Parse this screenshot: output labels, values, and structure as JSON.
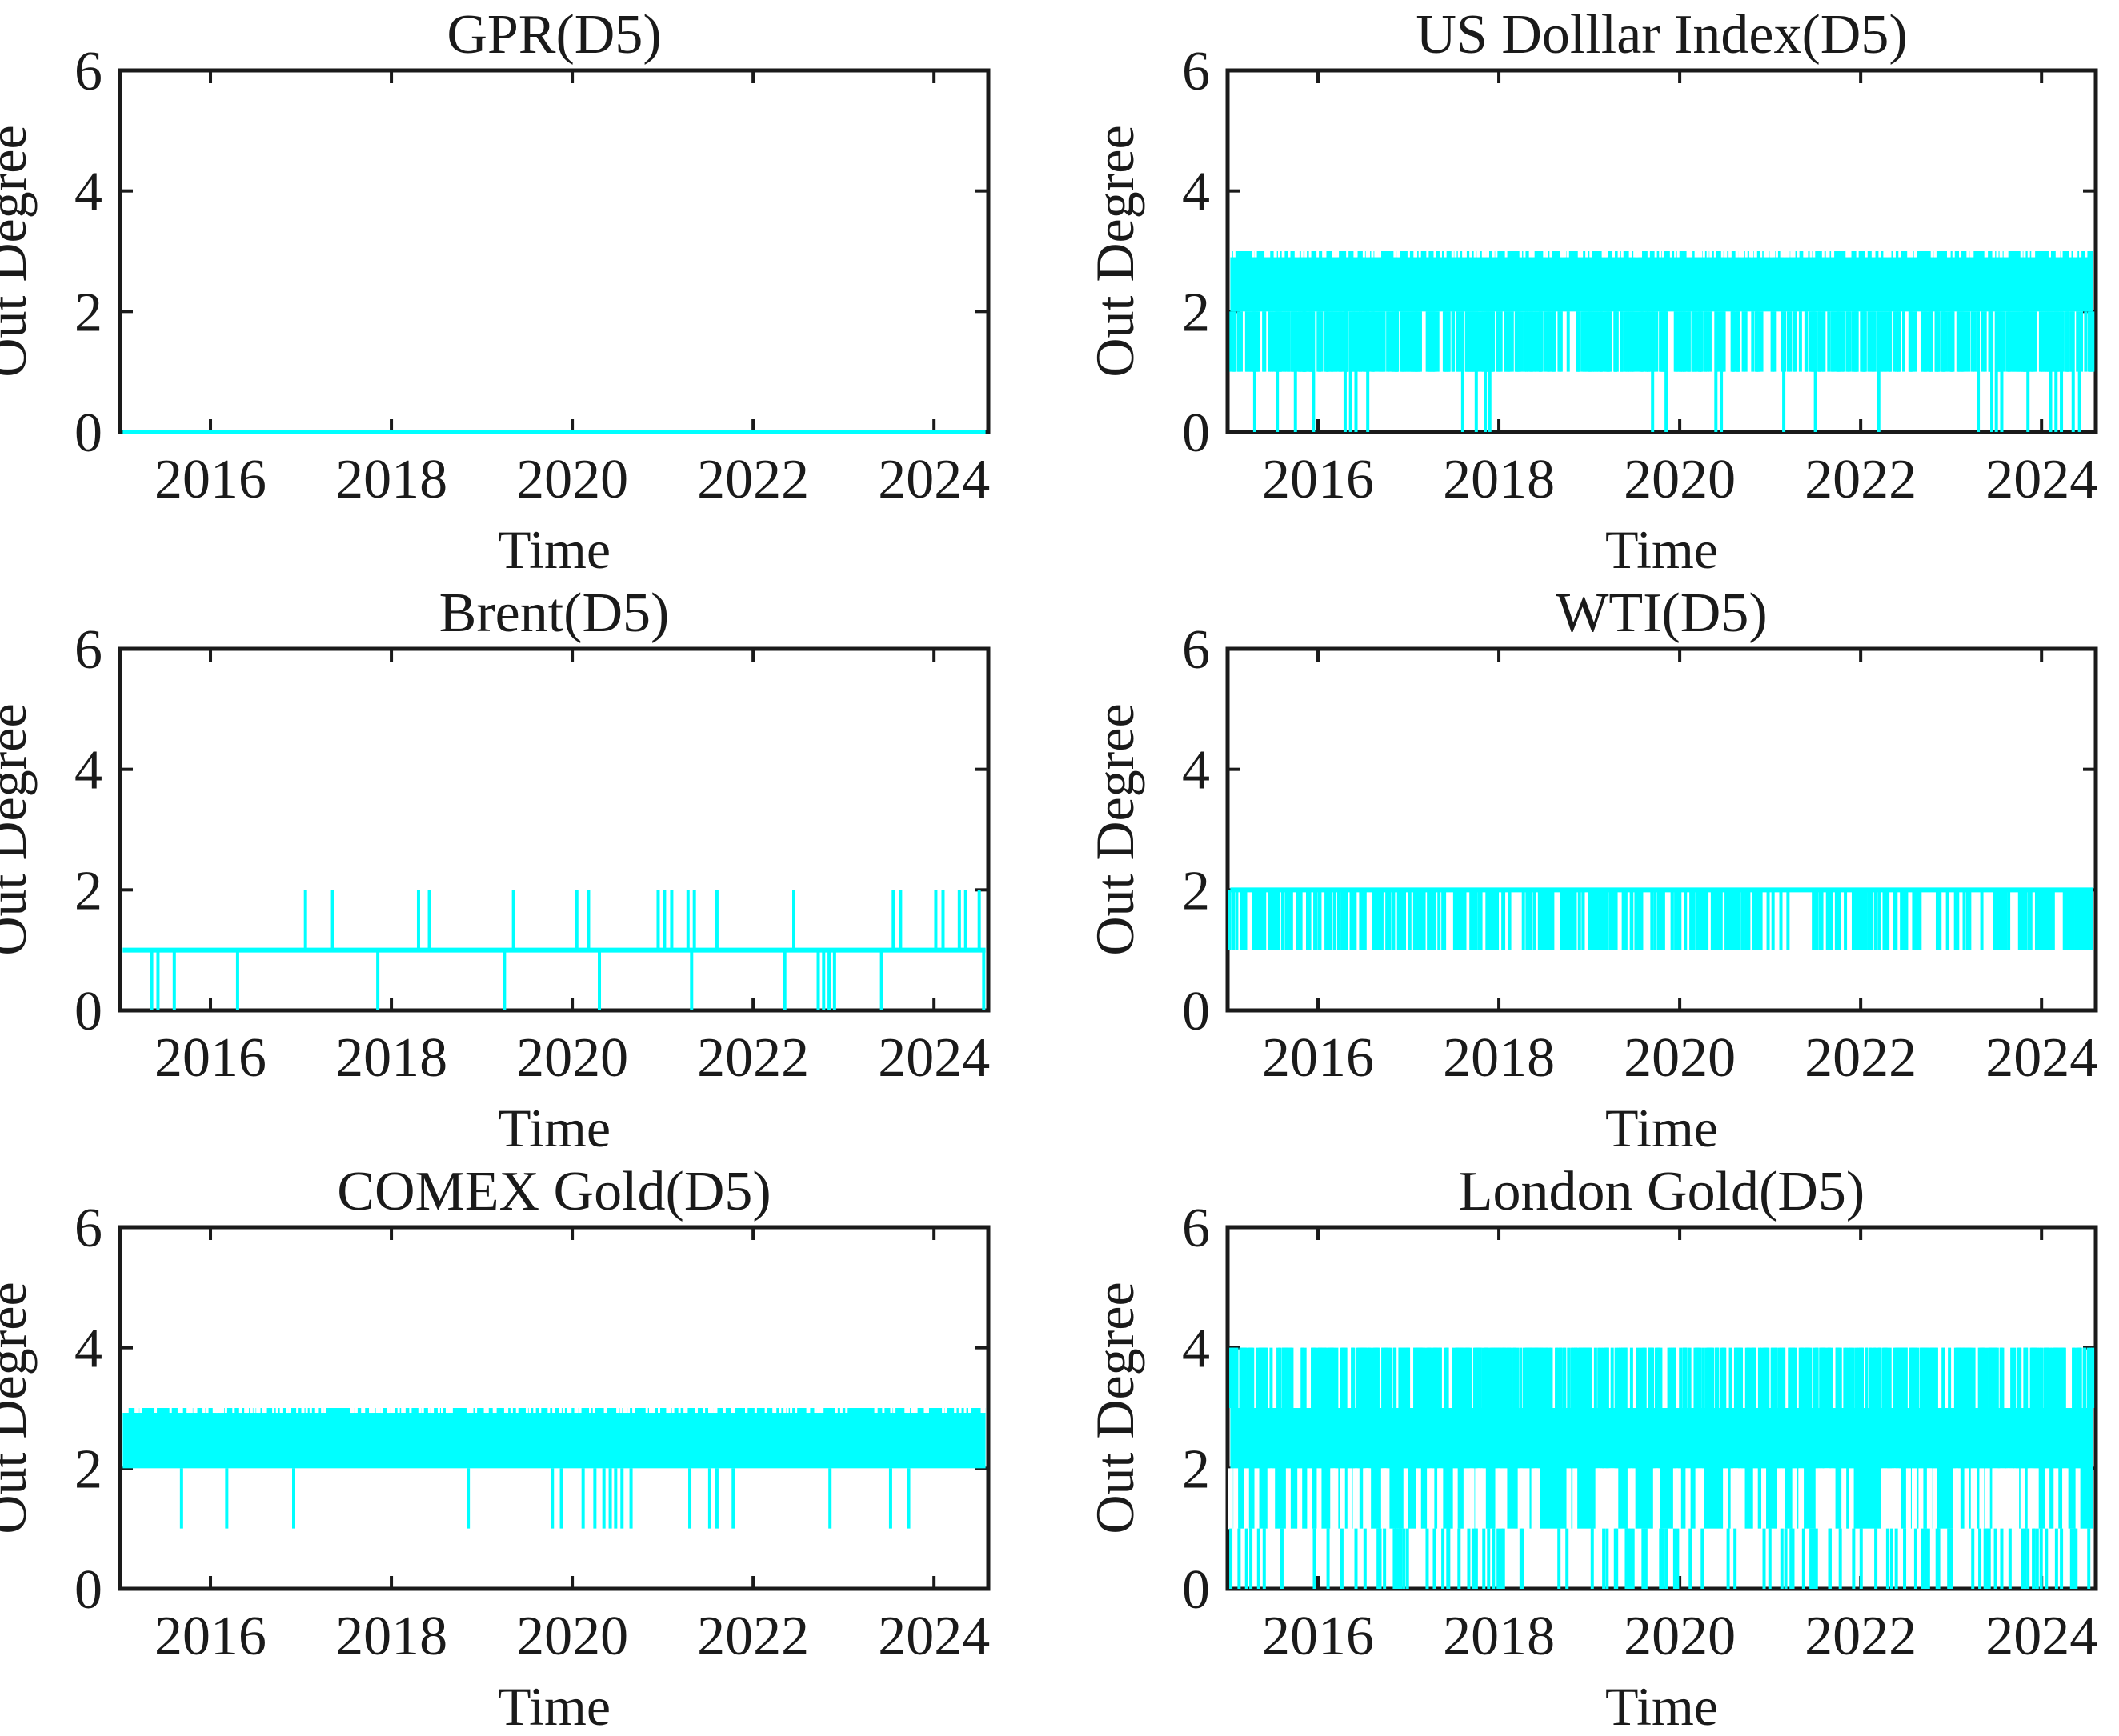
{
  "figure": {
    "background": "#ffffff",
    "grid_rows": 3,
    "grid_cols": 2,
    "note": "Six MATLAB-style subplots of wavelet-scale D5 out-degree time series; dense high-frequency integer oscillations are encoded as bands, explicit spike lists, and per-year line densities."
  },
  "colors": {
    "line": "#00ffff",
    "axis": "#1a1a1a",
    "text": "#1a1a1a",
    "background": "#ffffff"
  },
  "chart_data": [
    {
      "type": "line",
      "title": "GPR(D5)",
      "xlabel": "Time",
      "ylabel": "Out Degree",
      "xlim": [
        2015,
        2024.6
      ],
      "ylim": [
        0,
        6
      ],
      "xticks": [
        2016,
        2018,
        2020,
        2022,
        2024
      ],
      "yticks": [
        0,
        2,
        4,
        6
      ],
      "grid": false,
      "legend": null,
      "series_description": "Out degree constant at 0 over the whole sample (2015 - mid 2024).",
      "features": [
        {
          "kind": "hline",
          "y": 0,
          "w": 6
        }
      ]
    },
    {
      "type": "line",
      "title": "US Dolllar Index(D5)",
      "xlabel": "Time",
      "ylabel": "Out Degree",
      "xlim": [
        2015,
        2024.6
      ],
      "ylim": [
        0,
        6
      ],
      "xticks": [
        2016,
        2018,
        2020,
        2022,
        2024
      ],
      "yticks": [
        0,
        2,
        4,
        6
      ],
      "grid": false,
      "legend": null,
      "series_description": "Out degree oscillates rapidly between 2 and 3 (solid band), with frequent brief drops to 1 and occasional drops to 0.",
      "features": [
        {
          "kind": "band",
          "y1": 2,
          "y2": 3
        },
        {
          "kind": "texture",
          "y1": 2.9,
          "y2": 3.04,
          "density": 26,
          "seed": 101,
          "w": 3,
          "color": "#ffffff"
        },
        {
          "kind": "texture",
          "y1": 1,
          "y2": 2,
          "density": 55,
          "seed": 102,
          "w": 4
        },
        {
          "kind": "vlines",
          "y1": 0,
          "y2": 2,
          "w": 4,
          "x": [
            2015.3,
            2015.55,
            2015.75,
            2015.95,
            2016.3,
            2016.36,
            2016.42,
            2016.55,
            2017.6,
            2017.75,
            2017.85,
            2017.9,
            2019.7,
            2019.85,
            2020.4,
            2020.46,
            2021.15,
            2021.5,
            2022.2,
            2023.3,
            2023.45,
            2023.5,
            2023.56,
            2023.85,
            2024.1,
            2024.16,
            2024.22,
            2024.35,
            2024.42
          ]
        }
      ]
    },
    {
      "type": "line",
      "title": "Brent(D5)",
      "xlabel": "Time",
      "ylabel": "Out Degree",
      "xlim": [
        2015,
        2024.6
      ],
      "ylim": [
        0,
        6
      ],
      "xticks": [
        2016,
        2018,
        2020,
        2022,
        2024
      ],
      "yticks": [
        0,
        2,
        4,
        6
      ],
      "grid": false,
      "legend": null,
      "series_description": "Out degree mostly 1, with occasional spikes to 2 and occasional drops to 0.",
      "features": [
        {
          "kind": "hline",
          "y": 1,
          "w": 6
        },
        {
          "kind": "vlines",
          "y1": 1,
          "y2": 2,
          "w": 4,
          "x": [
            2017.05,
            2017.35,
            2018.3,
            2018.42,
            2019.35,
            2020.05,
            2020.18,
            2020.95,
            2021.02,
            2021.1,
            2021.28,
            2021.35,
            2021.6,
            2022.45,
            2023.55,
            2023.63,
            2024.02,
            2024.1,
            2024.28,
            2024.35,
            2024.5
          ]
        },
        {
          "kind": "vlines",
          "y1": 0,
          "y2": 1,
          "w": 4,
          "x": [
            2015.35,
            2015.42,
            2015.6,
            2016.3,
            2017.85,
            2019.25,
            2020.3,
            2021.32,
            2022.35,
            2022.72,
            2022.78,
            2022.84,
            2022.9,
            2023.42,
            2024.55
          ]
        }
      ]
    },
    {
      "type": "line",
      "title": "WTI(D5)",
      "xlabel": "Time",
      "ylabel": "Out Degree",
      "xlim": [
        2015,
        2024.6
      ],
      "ylim": [
        0,
        6
      ],
      "xticks": [
        2016,
        2018,
        2020,
        2022,
        2024
      ],
      "yticks": [
        0,
        2,
        4,
        6
      ],
      "grid": false,
      "legend": null,
      "series_description": "Out degree mostly 2 with very frequent brief drops to 1; drops become sparse around 2021.",
      "features": [
        {
          "kind": "hline",
          "y": 2,
          "w": 6
        },
        {
          "kind": "texture",
          "y1": 1,
          "y2": 2,
          "density": 42,
          "seed": 201,
          "w": 4,
          "x1": 2015.02,
          "x2": 2020.9
        },
        {
          "kind": "texture",
          "y1": 1,
          "y2": 2,
          "density": 9,
          "seed": 202,
          "w": 4,
          "x1": 2020.9,
          "x2": 2021.5
        },
        {
          "kind": "texture",
          "y1": 1,
          "y2": 2,
          "density": 40,
          "seed": 203,
          "w": 4,
          "x1": 2021.5,
          "x2": 2024.56
        }
      ]
    },
    {
      "type": "line",
      "title": "COMEX Gold(D5)",
      "xlabel": "Time",
      "ylabel": "Out Degree",
      "xlim": [
        2015,
        2024.6
      ],
      "ylim": [
        0,
        6
      ],
      "xticks": [
        2016,
        2018,
        2020,
        2022,
        2024
      ],
      "yticks": [
        0,
        2,
        4,
        6
      ],
      "grid": false,
      "legend": null,
      "series_description": "Out degree oscillates between 2 and 3 (solid band) with sparse brief drops to 1, clustered around 2020.",
      "features": [
        {
          "kind": "band",
          "y1": 2,
          "y2": 3
        },
        {
          "kind": "texture",
          "y1": 2.92,
          "y2": 3.04,
          "density": 22,
          "seed": 301,
          "w": 3,
          "color": "#ffffff"
        },
        {
          "kind": "vlines",
          "y1": 1,
          "y2": 2,
          "w": 4,
          "x": [
            2015.68,
            2016.18,
            2016.92,
            2018.85,
            2019.78,
            2019.88,
            2020.12,
            2020.25,
            2020.35,
            2020.42,
            2020.48,
            2020.55,
            2020.65,
            2021.3,
            2021.52,
            2021.6,
            2021.78,
            2022.85,
            2023.52,
            2023.72
          ]
        }
      ]
    },
    {
      "type": "line",
      "title": "London Gold(D5)",
      "xlabel": "Time",
      "ylabel": "Out Degree",
      "xlim": [
        2015,
        2024.6
      ],
      "ylim": [
        0,
        6
      ],
      "xticks": [
        2016,
        2018,
        2020,
        2022,
        2024
      ],
      "yticks": [
        0,
        2,
        4,
        6
      ],
      "grid": false,
      "legend": null,
      "series_description": "Out degree oscillates mostly between 1 and 3 (dense band) with frequent spikes to 4 and recurrent drops to 0.",
      "features": [
        {
          "kind": "band",
          "y1": 1,
          "y2": 3
        },
        {
          "kind": "texture",
          "y1": 0.99,
          "y2": 2,
          "density": 14,
          "seed": 401,
          "w": 6,
          "color": "#ffffff"
        },
        {
          "kind": "texture",
          "y1": 3,
          "y2": 4,
          "density": 55,
          "seed": 402,
          "w": 4
        },
        {
          "kind": "texture",
          "y1": 0,
          "y2": 1,
          "density": 12,
          "seed": 403,
          "w": 4
        }
      ]
    }
  ]
}
